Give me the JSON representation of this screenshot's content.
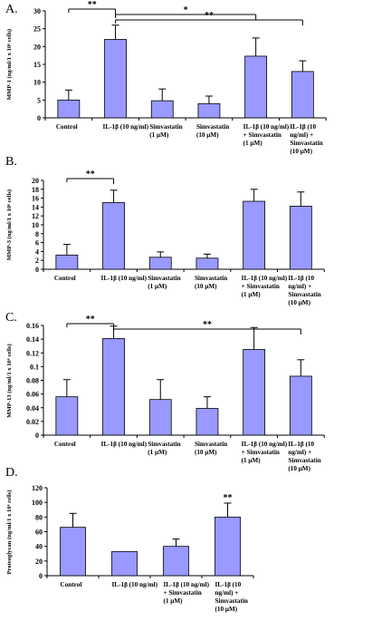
{
  "chart_data": [
    {
      "type": "bar",
      "panel_label": "A.",
      "ylabel": "MMP-1 (ng/ml/1 x 10⁶ cells)",
      "ylim": [
        0,
        30
      ],
      "yticks": [
        "0",
        "5",
        "10",
        "15",
        "20",
        "25",
        "30"
      ],
      "categories": [
        [
          "Control"
        ],
        [
          "IL-1β (10 ng/ml)"
        ],
        [
          "Simvastatin",
          "(1 μM)"
        ],
        [
          "Simvastatin",
          "(10 μM)"
        ],
        [
          "IL-1β (10 ng/ml)",
          "+ Simvastatin",
          "(1 μM)"
        ],
        [
          "IL-1β (10",
          "ng/ml) +",
          "Simvastatin",
          "(10 μM)"
        ]
      ],
      "values": [
        5.0,
        22.0,
        4.8,
        4.0,
        17.3,
        13.0
      ],
      "errors": [
        2.8,
        4.0,
        3.3,
        2.1,
        5.1,
        3.0
      ],
      "significance": [
        {
          "from": 0,
          "to": 1,
          "label": "**"
        },
        {
          "from": 1,
          "to": 4,
          "label": "*"
        },
        {
          "from": 1,
          "to": 5,
          "label": "**"
        }
      ]
    },
    {
      "type": "bar",
      "panel_label": "B.",
      "ylabel": "MMP-3 (ng/ml/1 x 10⁶ cells)",
      "ylim": [
        0,
        20
      ],
      "yticks": [
        "0",
        "2",
        "4",
        "6",
        "8",
        "10",
        "12",
        "14",
        "16",
        "18",
        "20"
      ],
      "categories": [
        [
          "Control"
        ],
        [
          "IL-1β (10 ng/ml)"
        ],
        [
          "Simvastatin",
          "(1 μM)"
        ],
        [
          "Simvastatin",
          "(10 μM)"
        ],
        [
          "IL-1β (10 ng/ml)",
          "+ Simvastatin",
          "(1 μM)"
        ],
        [
          "IL-1β (10",
          "ng/ml) +",
          "Simvastatin",
          "(10 μM)"
        ]
      ],
      "values": [
        3.2,
        15.0,
        2.7,
        2.5,
        15.3,
        14.2
      ],
      "errors": [
        2.4,
        2.8,
        1.2,
        0.9,
        2.7,
        3.2
      ],
      "significance": [
        {
          "from": 0,
          "to": 1,
          "label": "**"
        }
      ]
    },
    {
      "type": "bar",
      "panel_label": "C.",
      "ylabel": "MMP-13 (ng/ml/1 x 10⁶ cells)",
      "ylim": [
        0,
        0.16
      ],
      "yticks": [
        "0",
        "0.02",
        "0.04",
        "0.06",
        "0.08",
        "0.1",
        "0.12",
        "0.14",
        "0.16"
      ],
      "categories": [
        [
          "Control"
        ],
        [
          "IL-1β (10 ng/ml)"
        ],
        [
          "Simvastatin",
          "(1 μM)"
        ],
        [
          "Simvastatin",
          "(10 μM)"
        ],
        [
          "IL-1β (10 ng/ml)",
          "+ Simvastatin",
          "(1 μM)"
        ],
        [
          "IL-1β (10",
          "ng/ml) +",
          "Simvastatin",
          "(10 μM)"
        ]
      ],
      "values": [
        0.056,
        0.141,
        0.052,
        0.039,
        0.125,
        0.086
      ],
      "errors": [
        0.025,
        0.018,
        0.029,
        0.017,
        0.032,
        0.024
      ],
      "significance": [
        {
          "from": 0,
          "to": 1,
          "label": "**"
        },
        {
          "from": 1,
          "to": 5,
          "label": "**"
        }
      ]
    },
    {
      "type": "bar",
      "panel_label": "D.",
      "ylabel": "Proteoglycan (ng/ml/1 x 10⁶ cells)",
      "ylim": [
        0,
        120
      ],
      "yticks": [
        "0",
        "20",
        "40",
        "60",
        "80",
        "100",
        "120"
      ],
      "categories": [
        [
          "Control"
        ],
        [
          "IL-1β (10 ng/ml)"
        ],
        [
          "IL-1β (10 ng/ml)",
          "+ Simvastatin",
          "(1 μM)"
        ],
        [
          "IL-1β (10",
          "ng/ml) +",
          "Simvastatin",
          "(10 μM)"
        ]
      ],
      "values": [
        66,
        33,
        40,
        80
      ],
      "errors": [
        19,
        0,
        10,
        19
      ],
      "significance": [
        {
          "over": 3,
          "label": "**"
        }
      ]
    }
  ],
  "colors": {
    "bar_fill": "#9999ff",
    "bar_stroke": "#000000",
    "axis": "#000000"
  }
}
